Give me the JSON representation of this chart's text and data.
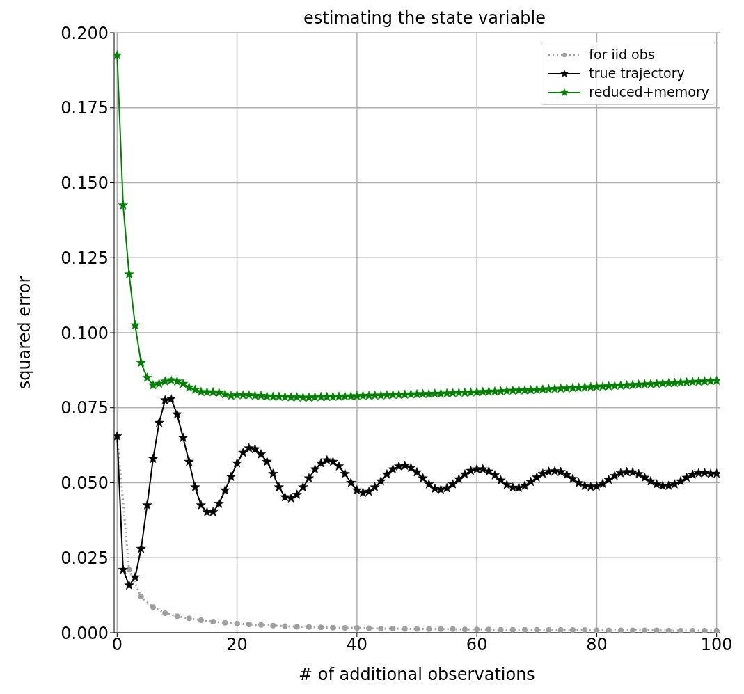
{
  "chart_data": {
    "type": "line",
    "title": "estimating the state variable",
    "xlabel": "# of additional observations",
    "ylabel": "squared error",
    "xlim": [
      -0.5,
      100.5
    ],
    "xticks": [
      0,
      20,
      40,
      60,
      80,
      100
    ],
    "ylim": [
      0,
      0.2
    ],
    "yticks": [
      {
        "value": 0,
        "label": "0.000"
      },
      {
        "value": 0.025,
        "label": "0.025"
      },
      {
        "value": 0.05,
        "label": "0.050"
      },
      {
        "value": 0.075,
        "label": "0.075"
      },
      {
        "value": 0.1,
        "label": "0.100"
      },
      {
        "value": 0.125,
        "label": "0.125"
      },
      {
        "value": 0.15,
        "label": "0.150"
      },
      {
        "value": 0.175,
        "label": "0.175"
      },
      {
        "value": 0.2,
        "label": "0.200"
      }
    ],
    "grid": true,
    "legend": "top right",
    "series": [
      {
        "name": "for iid obs",
        "color": "#a0a0a0",
        "marker": "circle",
        "line_style": "dotted",
        "x": [
          0,
          2,
          4,
          6,
          8,
          10,
          12,
          14,
          16,
          18,
          20,
          22,
          24,
          26,
          28,
          30,
          32,
          34,
          36,
          38,
          40,
          42,
          44,
          46,
          48,
          50,
          52,
          54,
          56,
          58,
          60,
          62,
          64,
          66,
          68,
          70,
          72,
          74,
          76,
          78,
          80,
          82,
          84,
          86,
          88,
          90,
          92,
          94,
          96,
          98,
          100
        ],
        "values": [
          0.0655,
          0.021,
          0.012,
          0.0085,
          0.0065,
          0.0055,
          0.0048,
          0.0042,
          0.0037,
          0.0033,
          0.003,
          0.0028,
          0.0026,
          0.0024,
          0.0022,
          0.002,
          0.0019,
          0.0018,
          0.0017,
          0.0016,
          0.0016,
          0.0015,
          0.0014,
          0.0014,
          0.0013,
          0.0013,
          0.0012,
          0.0012,
          0.0012,
          0.0011,
          0.0011,
          0.0011,
          0.001,
          0.001,
          0.001,
          0.001,
          0.0009,
          0.0009,
          0.0009,
          0.0009,
          0.0008,
          0.0008,
          0.0008,
          0.0008,
          0.0008,
          0.0008,
          0.0007,
          0.0007,
          0.0007,
          0.0007,
          0.0007
        ]
      },
      {
        "name": "true trajectory",
        "color": "#000000",
        "marker": "star",
        "line_style": "solid",
        "x": [
          0,
          1,
          2,
          3,
          4,
          5,
          6,
          7,
          8,
          9,
          10,
          11,
          12,
          13,
          14,
          15,
          16,
          17,
          18,
          19,
          20,
          21,
          22,
          23,
          24,
          25,
          26,
          27,
          28,
          29,
          30,
          31,
          32,
          33,
          34,
          35,
          36,
          37,
          38,
          39,
          40,
          41,
          42,
          43,
          44,
          45,
          46,
          47,
          48,
          49,
          50,
          51,
          52,
          53,
          54,
          55,
          56,
          57,
          58,
          59,
          60,
          61,
          62,
          63,
          64,
          65,
          66,
          67,
          68,
          69,
          70,
          71,
          72,
          73,
          74,
          75,
          76,
          77,
          78,
          79,
          80,
          81,
          82,
          83,
          84,
          85,
          86,
          87,
          88,
          89,
          90,
          91,
          92,
          93,
          94,
          95,
          96,
          97,
          98,
          99,
          100
        ],
        "values": [
          0.0655,
          0.021,
          0.0158,
          0.0185,
          0.028,
          0.0425,
          0.058,
          0.07,
          0.0775,
          0.078,
          0.0728,
          0.065,
          0.057,
          0.0485,
          0.0425,
          0.0402,
          0.0402,
          0.043,
          0.0475,
          0.052,
          0.0565,
          0.06,
          0.0615,
          0.0612,
          0.0595,
          0.057,
          0.053,
          0.0485,
          0.0452,
          0.0448,
          0.046,
          0.0485,
          0.0515,
          0.0545,
          0.0565,
          0.0575,
          0.057,
          0.0555,
          0.053,
          0.05,
          0.0475,
          0.0467,
          0.047,
          0.0485,
          0.0505,
          0.0528,
          0.0545,
          0.0555,
          0.0557,
          0.055,
          0.0535,
          0.0515,
          0.0495,
          0.048,
          0.0477,
          0.0482,
          0.0495,
          0.0512,
          0.0528,
          0.054,
          0.0545,
          0.0545,
          0.0538,
          0.0525,
          0.0508,
          0.0493,
          0.0484,
          0.0483,
          0.049,
          0.0503,
          0.0518,
          0.053,
          0.0537,
          0.0539,
          0.0536,
          0.0527,
          0.0513,
          0.0499,
          0.049,
          0.0486,
          0.0488,
          0.0497,
          0.051,
          0.0523,
          0.0532,
          0.0536,
          0.0535,
          0.0529,
          0.0517,
          0.0505,
          0.0495,
          0.049,
          0.049,
          0.0495,
          0.0505,
          0.0517,
          0.0527,
          0.0532,
          0.0533,
          0.053,
          0.053
        ]
      },
      {
        "name": "reduced+memory",
        "color": "#008000",
        "marker": "star",
        "line_style": "solid",
        "x": [
          0,
          1,
          2,
          3,
          4,
          5,
          6,
          7,
          8,
          9,
          10,
          11,
          12,
          13,
          14,
          15,
          16,
          17,
          18,
          19,
          20,
          21,
          22,
          23,
          24,
          25,
          26,
          27,
          28,
          29,
          30,
          31,
          32,
          33,
          34,
          35,
          36,
          37,
          38,
          39,
          40,
          41,
          42,
          43,
          44,
          45,
          46,
          47,
          48,
          49,
          50,
          51,
          52,
          53,
          54,
          55,
          56,
          57,
          58,
          59,
          60,
          61,
          62,
          63,
          64,
          65,
          66,
          67,
          68,
          69,
          70,
          71,
          72,
          73,
          74,
          75,
          76,
          77,
          78,
          79,
          80,
          81,
          82,
          83,
          84,
          85,
          86,
          87,
          88,
          89,
          90,
          91,
          92,
          93,
          94,
          95,
          96,
          97,
          98,
          99,
          100
        ],
        "values": [
          0.1925,
          0.1425,
          0.1195,
          0.1025,
          0.09,
          0.085,
          0.0825,
          0.083,
          0.0838,
          0.0842,
          0.0838,
          0.083,
          0.0818,
          0.081,
          0.0803,
          0.0802,
          0.0802,
          0.08,
          0.0795,
          0.079,
          0.0792,
          0.0792,
          0.0792,
          0.079,
          0.079,
          0.0788,
          0.0787,
          0.0787,
          0.0786,
          0.0785,
          0.0785,
          0.0784,
          0.0784,
          0.0785,
          0.0786,
          0.0786,
          0.0787,
          0.0787,
          0.0788,
          0.0788,
          0.0789,
          0.079,
          0.079,
          0.0791,
          0.0791,
          0.0792,
          0.0793,
          0.0793,
          0.0794,
          0.0795,
          0.0795,
          0.0796,
          0.0796,
          0.0797,
          0.0797,
          0.0798,
          0.0799,
          0.08,
          0.08,
          0.0801,
          0.0802,
          0.0803,
          0.0804,
          0.0804,
          0.0805,
          0.0806,
          0.0807,
          0.0808,
          0.0808,
          0.0809,
          0.081,
          0.0811,
          0.0812,
          0.0813,
          0.0814,
          0.0815,
          0.0816,
          0.0817,
          0.0818,
          0.0819,
          0.082,
          0.0821,
          0.0822,
          0.0823,
          0.0824,
          0.0825,
          0.0826,
          0.0827,
          0.0828,
          0.0829,
          0.083,
          0.0831,
          0.0832,
          0.0833,
          0.0834,
          0.0835,
          0.0836,
          0.0837,
          0.0838,
          0.0839,
          0.084
        ]
      }
    ]
  }
}
